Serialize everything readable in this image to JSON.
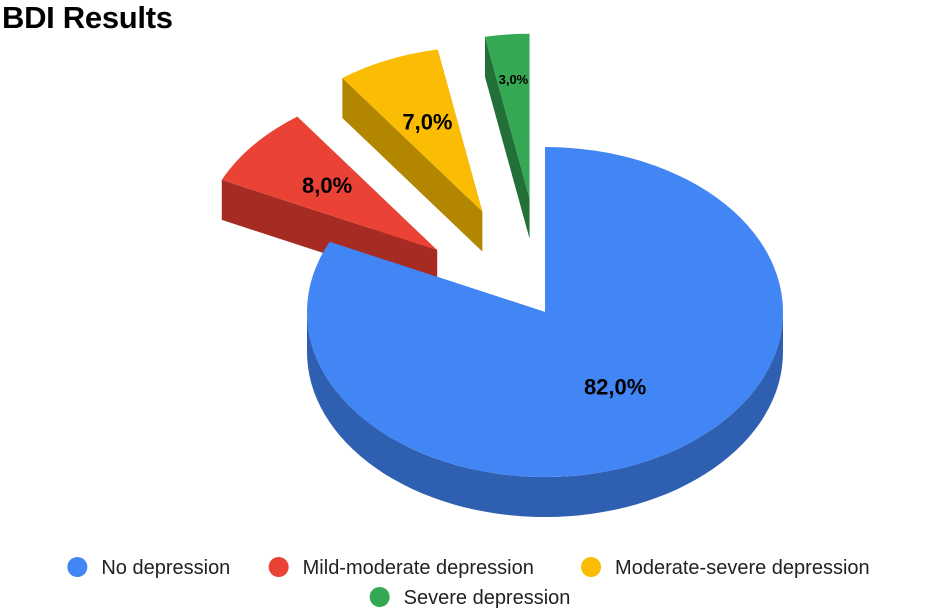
{
  "chart_data": {
    "type": "pie",
    "variant": "3d-exploded",
    "title": "BDI Results",
    "categories": [
      "No depression",
      "Mild-moderate depression",
      "Moderate-severe depression",
      "Severe depression"
    ],
    "values": [
      82.0,
      8.0,
      7.0,
      3.0
    ],
    "labels": [
      "82,0%",
      "8,0%",
      "7,0%",
      "3,0%"
    ],
    "colors": [
      "#4285f4",
      "#ea4335",
      "#fbbc04",
      "#34a853"
    ],
    "side_colors": [
      "#2f5fb0",
      "#a62b22",
      "#b38600",
      "#227038"
    ],
    "legend": {
      "position": "bottom",
      "items": [
        {
          "label": "No depression",
          "color": "#4285f4"
        },
        {
          "label": "Mild-moderate depression",
          "color": "#ea4335"
        },
        {
          "label": "Moderate-severe depression",
          "color": "#fbbc04"
        },
        {
          "label": "Severe depression",
          "color": "#34a853"
        }
      ]
    }
  }
}
